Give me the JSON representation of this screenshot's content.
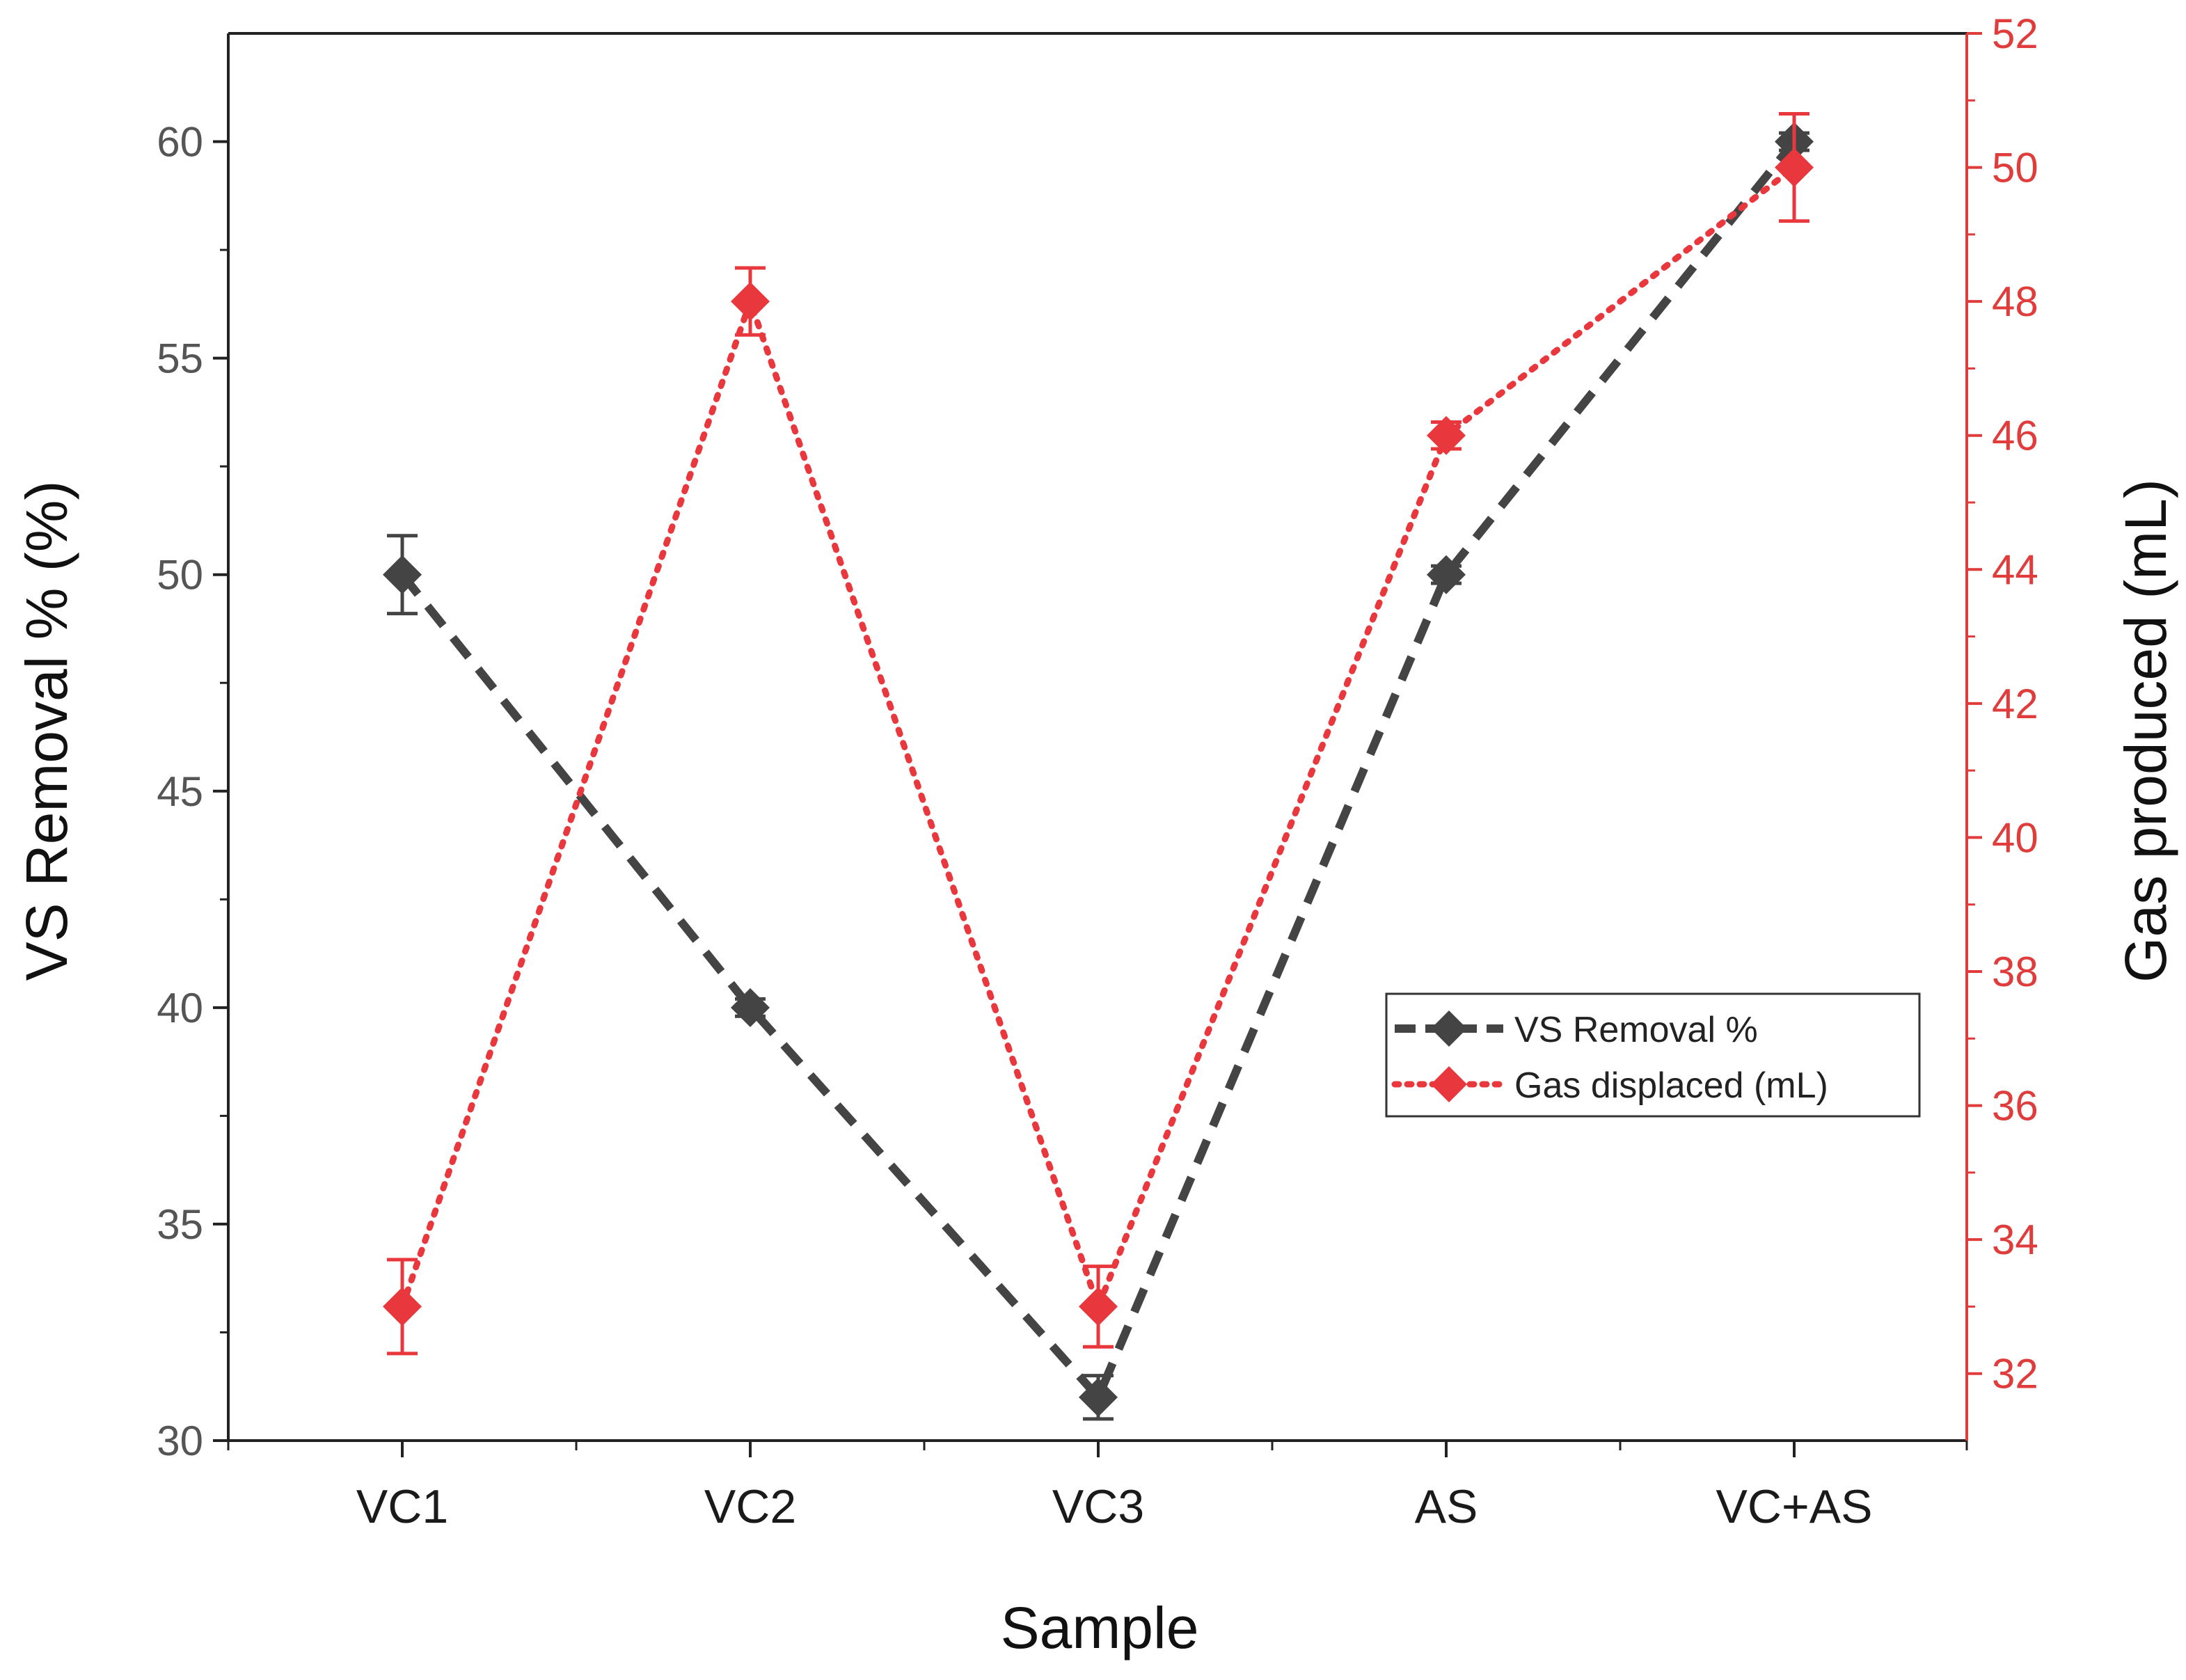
{
  "colors": {
    "vs_series": "#444444",
    "gas_series": "#e8383d",
    "left_axis": "#555555",
    "right_axis": "#e03c3c",
    "frame": "#222222"
  },
  "chart_data": {
    "type": "line",
    "title": "",
    "xlabel": "Sample",
    "ylabel": "VS Removal % (%)",
    "ylabel_right": "Gas produced (mL)",
    "categories": [
      "VC1",
      "VC2",
      "VC3",
      "AS",
      "VC+AS"
    ],
    "ylim": [
      30,
      62.5
    ],
    "ylim_right": [
      31,
      52
    ],
    "yticks": [
      30,
      35,
      40,
      45,
      50,
      55,
      60
    ],
    "yticks_right": [
      32,
      34,
      36,
      38,
      40,
      42,
      44,
      46,
      48,
      50,
      52
    ],
    "legend_position": "center-right",
    "series": [
      {
        "name": "VS Removal %",
        "axis": "left",
        "values": [
          50,
          40,
          31,
          50,
          60
        ],
        "errors": [
          0.9,
          0.2,
          0.5,
          0.2,
          0.2
        ],
        "line_style": "dashed",
        "marker": "diamond"
      },
      {
        "name": "Gas displaced (mL)",
        "axis": "right",
        "values": [
          33,
          48,
          33,
          46,
          50
        ],
        "errors": [
          0.7,
          0.5,
          0.6,
          0.2,
          0.8
        ],
        "line_style": "dotted",
        "marker": "diamond"
      }
    ]
  }
}
